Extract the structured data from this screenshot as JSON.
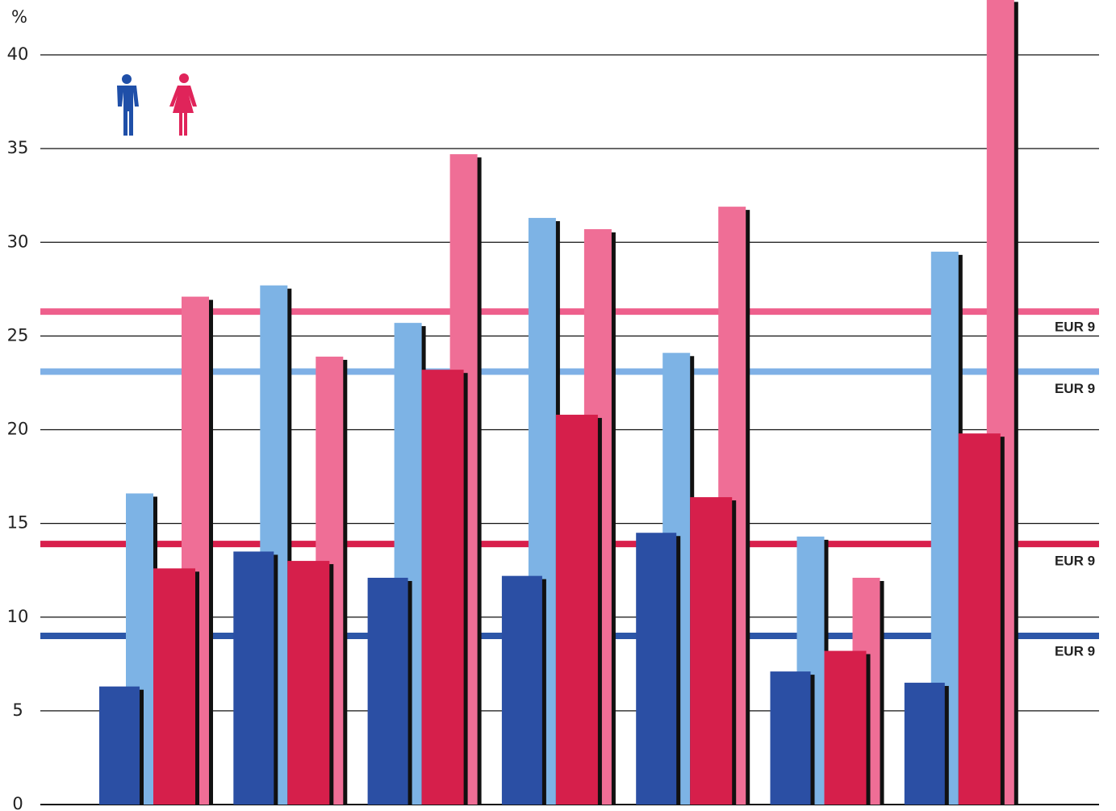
{
  "chart_data": {
    "type": "bar",
    "y_unit": "%",
    "categories": [
      null,
      null,
      null,
      null,
      null,
      null,
      null
    ],
    "series": [
      {
        "color": "#2b4fa4",
        "values": [
          6.3,
          13.5,
          12.1,
          12.2,
          14.5,
          7.1,
          6.5
        ]
      },
      {
        "color": "#7db3e5",
        "values": [
          16.6,
          27.7,
          25.7,
          31.3,
          24.1,
          14.3,
          29.5
        ]
      },
      {
        "color": "#d61f4b",
        "values": [
          12.6,
          13.0,
          23.2,
          20.8,
          16.4,
          8.2,
          19.8
        ]
      },
      {
        "color": "#ef6e96",
        "values": [
          27.1,
          23.9,
          34.7,
          30.7,
          31.9,
          12.1,
          43
        ]
      }
    ],
    "reference_lines": [
      {
        "value": 26.3,
        "color": "#ee5f8c",
        "label": "EUR 9"
      },
      {
        "value": 23.1,
        "color": "#7fb0e6",
        "label": "EUR 9"
      },
      {
        "value": 13.9,
        "color": "#d8204c",
        "label": "EUR 9"
      },
      {
        "value": 9.0,
        "color": "#2c56a8",
        "label": "EUR 9"
      }
    ],
    "ylim": [
      0,
      43
    ],
    "yticks": [
      0,
      5,
      10,
      15,
      20,
      25,
      30,
      35,
      40
    ],
    "grid": true
  }
}
